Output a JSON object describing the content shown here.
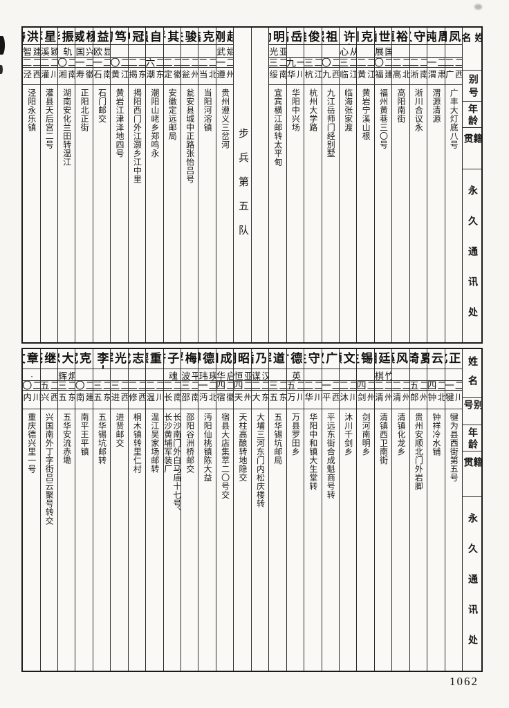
{
  "page_number": "1062",
  "header_labels": {
    "name": "姓名",
    "alias": "别号",
    "age": "年龄",
    "origin": "籍贯",
    "address": "永久通讯处"
  },
  "tables": [
    {
      "id": "top",
      "columns": [
        {
          "type": "entry",
          "name": "叶凤冈",
          "alias": "",
          "age": "二二",
          "origin": "江西广丰",
          "address": "广丰大灯底八号"
        },
        {
          "type": "entry",
          "name": "周钝",
          "alias": "",
          "age": "二一",
          "origin": "甘肃渭源",
          "address": "渭源清源"
        },
        {
          "type": "entry",
          "name": "王守义",
          "alias": "",
          "age": "二二",
          "origin": "河南淅川",
          "address": "淅川合议永"
        },
        {
          "type": "entry",
          "name": "韩裕恒",
          "alias": "",
          "age": "二二",
          "origin": "河北高阳",
          "address": "高阳南街"
        },
        {
          "type": "entry",
          "name": "陈世涵",
          "alias": "国展",
          "age": "二〇",
          "origin": "福建福州",
          "address": "福州黄巷三〇号"
        },
        {
          "type": "entry",
          "name": "王克川",
          "alias": "",
          "age": "二二",
          "origin": "浙江黄岩",
          "address": "黄岩宁溪山根"
        },
        {
          "type": "entry",
          "name": "许家幸",
          "name_mark": "·",
          "alias": "从心",
          "age": "二三",
          "origin": "浙江临海",
          "address": "临海张家渡"
        },
        {
          "type": "entry",
          "name": "平祖熙",
          "alias": "",
          "age": "二〇",
          "origin": "江西九江",
          "address": "九江岳师门经别墅"
        },
        {
          "type": "entry",
          "name": "黄俊雄",
          "alias": "",
          "age": "二三",
          "origin": "浙江杭州",
          "address": "杭州大学路"
        },
        {
          "type": "entry",
          "name": "魏岳高",
          "alias": "",
          "age": "一九",
          "origin": "四川华阳",
          "address": "华阳中兴场"
        },
        {
          "type": "entry",
          "name": "贺明勋",
          "alias": "亚光",
          "age": "二三",
          "origin": "云南绥江",
          "address": "宜宾横江邮转太平甸"
        },
        {
          "type": "divider",
          "label": ""
        },
        {
          "type": "divider",
          "label": "步兵第五队"
        },
        {
          "type": "entry",
          "name": "赵刚",
          "alias": "斌武",
          "age": "二一",
          "origin": "贵州遵义",
          "address": "贵州遵义三岔河"
        },
        {
          "type": "entry",
          "name": "王克鑫",
          "alias": "",
          "age": "二二",
          "origin": "湖北当阳",
          "address": "当阳河溶镇"
        },
        {
          "type": "entry",
          "name": "张骏夫",
          "alias": "",
          "age": "二二",
          "origin": "贵州瓮安",
          "address": "瓮安县城中正路张怡吕号"
        },
        {
          "type": "entry",
          "name": "张其乎",
          "alias": "",
          "age": "二二",
          "origin": "安徽定县",
          "address": "安徽定远邮局"
        },
        {
          "type": "entry",
          "name": "郑自强",
          "alias": "",
          "age": "二六",
          "origin": "广东潮阳",
          "address": "潮阳山峔乡郑鸣永"
        },
        {
          "type": "entry",
          "name": "林冠中",
          "alias": "",
          "age": "二二",
          "origin": "广东揭阳",
          "address": "揭阳西门外江灏乡江中里"
        },
        {
          "type": "entry",
          "name": "池笃初",
          "alias": "",
          "age": "二〇",
          "origin": "浙江黄岩",
          "address": "黄岩江津泽地四号"
        },
        {
          "type": "entry",
          "name": "黄益州",
          "alias": "显欧",
          "age": "二一",
          "origin": "湖南石门",
          "address": "石门邮交"
        },
        {
          "type": "entry",
          "name": "杨威",
          "alias": "兴国",
          "age": "二一",
          "origin": "安徽寿县",
          "address": "正阳北正街"
        },
        {
          "type": "entry",
          "name": "易振华",
          "alias": "轨",
          "age": "二〇",
          "origin": "湖南湘乡",
          "address": "湖南安化兰田转温江"
        },
        {
          "type": "entry",
          "name": "柏星萃",
          "alias": "颖溪",
          "age": "二二",
          "origin": "四川灌县",
          "address": "灌县天后宫二号"
        },
        {
          "type": "entry",
          "name": "刘洪畴",
          "alias": "建智",
          "age": "二二",
          "origin": "陕西泾阳",
          "address": "泾阳永乐镇"
        }
      ]
    },
    {
      "id": "bottom",
      "columns": [
        {
          "type": "entry",
          "name": "魏正化",
          "alias": "",
          "age": "二一",
          "origin": "四川犍为",
          "address": "犍为县西街第五号"
        },
        {
          "type": "entry",
          "name": "刘云昭",
          "alias": "",
          "age": "二四",
          "origin": "湖北钟祥",
          "address": "钟祥冷水铺"
        },
        {
          "type": "entry",
          "name": "夏琦",
          "alias": "",
          "age": "二五",
          "origin": "贵州郎岱",
          "address": "贵州安顺北门外岩脚"
        },
        {
          "type": "entry",
          "name": "吴风藻",
          "alias": "",
          "age": "二二",
          "origin": "贵州清镇",
          "address": "清镇化龙乡"
        },
        {
          "type": "entry",
          "name": "孙廷相",
          "alias": "竹棋",
          "age": "二二",
          "origin": "贵州清镇",
          "address": "清镇西卫南街"
        },
        {
          "type": "entry",
          "name": "姜锡生",
          "alias": "",
          "age": "二四",
          "origin": "贵州剑河",
          "address": "剑河南明乡"
        },
        {
          "type": "entry",
          "name": "王文灏",
          "alias": "",
          "age": "二二",
          "origin": "四川沐川",
          "address": "沐川千剑乡"
        },
        {
          "type": "entry",
          "name": "孔广汉",
          "alias": "",
          "age": "二一",
          "origin": "山西平远",
          "address": "平远东街合成魁商号转"
        },
        {
          "type": "entry",
          "name": "张守生",
          "alias": "",
          "age": "二二",
          "origin": "四川华阳",
          "address": "华阳中和镇大生堂转"
        },
        {
          "type": "entry",
          "name": "张德才",
          "alias": "英",
          "age": "二五",
          "origin": "四川万县",
          "address": "万县罗田乡"
        },
        {
          "type": "entry",
          "name": "李道辉",
          "alias": "",
          "age": "二三",
          "origin": "广东五华",
          "address": "五华锡坑邮局"
        },
        {
          "type": "entry",
          "name": "徐乃插",
          "alias": "汉谋",
          "age": "二二",
          "origin": "广东大埔",
          "address": "大埔三河东门内松庆楼转"
        },
        {
          "type": "entry",
          "name": "龙昭炯",
          "alias": "亚恒",
          "age": "二四",
          "origin": "贵州天柱",
          "address": "天柱高酿转地隐交"
        },
        {
          "type": "entry",
          "name": "卢成和",
          "alias": "启华",
          "age": "二四",
          "origin": "安徽宿县",
          "address": "宿县大店集萃二〇号交"
        },
        {
          "type": "entry",
          "name": "陈德溥",
          "alias": "瑛玮",
          "age": "二一",
          "origin": "湖北沔阳",
          "address": "沔阳仙桃镇陈大益"
        },
        {
          "type": "entry",
          "name": "黄梅桴",
          "alias": "平波",
          "age": "二三",
          "origin": "湖南邵阳",
          "address": "邵阳谷洲桥邮交"
        },
        {
          "type": "entry",
          "name": "黄子奋",
          "alias": "魂",
          "age": "二二",
          "origin": "湖南长沙",
          "address": "长沙南门外白马庙十七号、\n长沙黄埔军装厂"
        },
        {
          "type": "entry",
          "name": "王重德",
          "alias": "",
          "age": "二二",
          "origin": "四川温江",
          "address": "温江吴家场邮转"
        },
        {
          "type": "entry",
          "name": "韦志戎",
          "alias": "",
          "age": "二二",
          "origin": "陕西修仁",
          "address": "桐木镇转里仁村"
        },
        {
          "type": "entry",
          "name": "舒光辉",
          "alias": "",
          "age": "二三",
          "origin": "江西进贤",
          "address": "进贤邮交"
        },
        {
          "type": "entry",
          "name": "李大锐",
          "name_mark": "·",
          "alias": "",
          "age": "二三",
          "origin": "广东五华",
          "address": "五华锡坑邮转"
        },
        {
          "type": "entry",
          "name": "黄克宽",
          "alias": "",
          "age": "二〇",
          "origin": "福建南平",
          "address": "南平王平镇"
        },
        {
          "type": "entry",
          "name": "古大忠",
          "alias": "炯辉",
          "age": "二三",
          "origin": "广东五华",
          "address": "五华安流赤墈"
        },
        {
          "type": "entry",
          "name": "吕继亮",
          "alias": "",
          "age": "二五",
          "origin": "江西兴国",
          "address": "兴国南外丁字街吕云聚号转交"
        },
        {
          "type": "entry",
          "name": "刘章文",
          "alias": "·",
          "age": "二〇",
          "origin": "四川内江",
          "address": "重庆德兴里一号"
        }
      ]
    }
  ]
}
